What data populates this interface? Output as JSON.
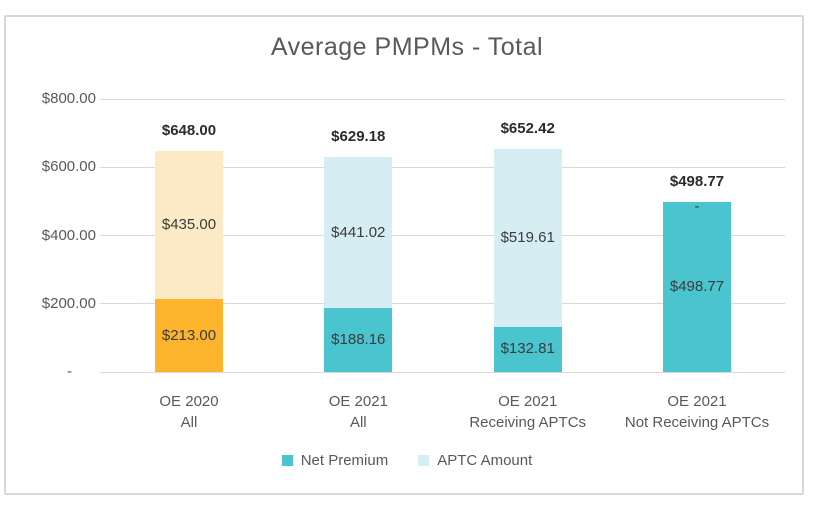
{
  "chart_data": {
    "type": "bar",
    "stacked": true,
    "title": "Average PMPMs - Total",
    "categories": [
      [
        "OE 2020",
        "All"
      ],
      [
        "OE 2021",
        "All"
      ],
      [
        "OE 2021",
        "Receiving APTCs"
      ],
      [
        "OE 2021",
        "Not Receiving APTCs"
      ]
    ],
    "series": [
      {
        "name": "Net Premium",
        "values": [
          213.0,
          188.16,
          132.81,
          498.77
        ],
        "labels": [
          "$213.00",
          "$188.16",
          "$132.81",
          "$498.77"
        ],
        "colors": [
          "#FBB42C",
          "#4AC4CF",
          "#4AC4CF",
          "#4AC4CF"
        ],
        "legend_color": "#4AC4CF"
      },
      {
        "name": "APTC Amount",
        "values": [
          435.0,
          441.02,
          519.61,
          0
        ],
        "labels": [
          "$435.00",
          "$441.02",
          "$519.61",
          "-"
        ],
        "colors": [
          "#FCEAC6",
          "#D5EDF3",
          "#D5EDF3",
          "#D5EDF3"
        ],
        "legend_color": "#D5EDF3"
      }
    ],
    "totals": [
      648.0,
      629.18,
      652.42,
      498.77
    ],
    "total_labels": [
      "$648.00",
      "$629.18",
      "$652.42",
      "$498.77"
    ],
    "ylim": [
      0,
      800
    ],
    "y_ticks": [
      {
        "value": 800,
        "label": "$800.00"
      },
      {
        "value": 600,
        "label": "$600.00"
      },
      {
        "value": 400,
        "label": "$400.00"
      },
      {
        "value": 200,
        "label": "$200.00"
      },
      {
        "value": 0,
        "label": "-"
      }
    ],
    "grid": true,
    "legend_position": "bottom",
    "colors": {
      "grid": "#D9D9D9",
      "frame_border": "#D8D8D8",
      "title_text": "#595959",
      "axis_text": "#595959",
      "value_text": "#3B3B3B",
      "total_text": "#2B2B2B"
    }
  }
}
